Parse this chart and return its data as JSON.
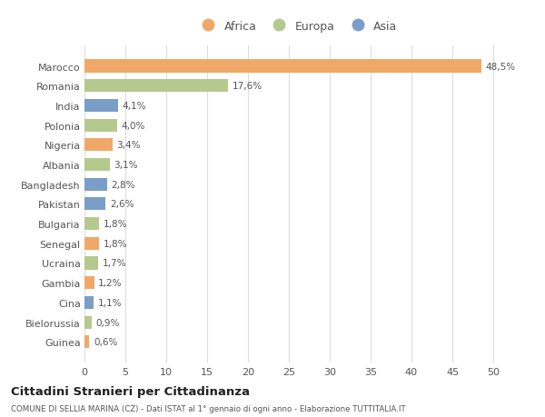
{
  "countries": [
    "Marocco",
    "Romania",
    "India",
    "Polonia",
    "Nigeria",
    "Albania",
    "Bangladesh",
    "Pakistan",
    "Bulgaria",
    "Senegal",
    "Ucraina",
    "Gambia",
    "Cina",
    "Bielorussia",
    "Guinea"
  ],
  "values": [
    48.5,
    17.6,
    4.1,
    4.0,
    3.4,
    3.1,
    2.8,
    2.6,
    1.8,
    1.8,
    1.7,
    1.2,
    1.1,
    0.9,
    0.6
  ],
  "labels": [
    "48,5%",
    "17,6%",
    "4,1%",
    "4,0%",
    "3,4%",
    "3,1%",
    "2,8%",
    "2,6%",
    "1,8%",
    "1,8%",
    "1,7%",
    "1,2%",
    "1,1%",
    "0,9%",
    "0,6%"
  ],
  "continents": [
    "Africa",
    "Europa",
    "Asia",
    "Europa",
    "Africa",
    "Europa",
    "Asia",
    "Asia",
    "Europa",
    "Africa",
    "Europa",
    "Africa",
    "Asia",
    "Europa",
    "Africa"
  ],
  "colors": {
    "Africa": "#F0A868",
    "Europa": "#B5C98E",
    "Asia": "#7B9EC9"
  },
  "legend_order": [
    "Africa",
    "Europa",
    "Asia"
  ],
  "xlim": [
    0,
    52
  ],
  "xticks": [
    0,
    5,
    10,
    15,
    20,
    25,
    30,
    35,
    40,
    45,
    50
  ],
  "title": "Cittadini Stranieri per Cittadinanza",
  "subtitle": "COMUNE DI SELLIA MARINA (CZ) - Dati ISTAT al 1° gennaio di ogni anno - Elaborazione TUTTITALIA.IT",
  "background_color": "#ffffff",
  "grid_color": "#dddddd"
}
